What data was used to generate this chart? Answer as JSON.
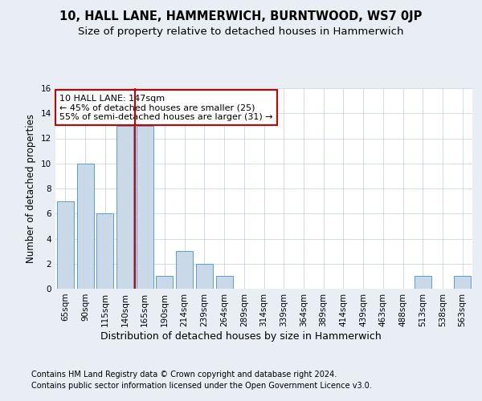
{
  "title1": "10, HALL LANE, HAMMERWICH, BURNTWOOD, WS7 0JP",
  "title2": "Size of property relative to detached houses in Hammerwich",
  "xlabel": "Distribution of detached houses by size in Hammerwich",
  "ylabel": "Number of detached properties",
  "categories": [
    "65sqm",
    "90sqm",
    "115sqm",
    "140sqm",
    "165sqm",
    "190sqm",
    "214sqm",
    "239sqm",
    "264sqm",
    "289sqm",
    "314sqm",
    "339sqm",
    "364sqm",
    "389sqm",
    "414sqm",
    "439sqm",
    "463sqm",
    "488sqm",
    "513sqm",
    "538sqm",
    "563sqm"
  ],
  "values": [
    7,
    10,
    6,
    13,
    13,
    1,
    3,
    2,
    1,
    0,
    0,
    0,
    0,
    0,
    0,
    0,
    0,
    0,
    1,
    0,
    1
  ],
  "bar_color": "#c9d9e8",
  "bar_edge_color": "#5b9bd5",
  "red_line_x": 3.5,
  "annotation_text": "10 HALL LANE: 147sqm\n← 45% of detached houses are smaller (25)\n55% of semi-detached houses are larger (31) →",
  "annotation_box_color": "white",
  "annotation_box_edge": "#cc0000",
  "ylim": [
    0,
    16
  ],
  "yticks": [
    0,
    2,
    4,
    6,
    8,
    10,
    12,
    14,
    16
  ],
  "footer1": "Contains HM Land Registry data © Crown copyright and database right 2024.",
  "footer2": "Contains public sector information licensed under the Open Government Licence v3.0.",
  "background_color": "#e8eef4",
  "plot_background": "white",
  "grid_color": "#c0cfe0",
  "title1_fontsize": 10.5,
  "title2_fontsize": 9.5,
  "xlabel_fontsize": 9,
  "ylabel_fontsize": 8.5,
  "tick_fontsize": 7.5,
  "annotation_fontsize": 8,
  "footer_fontsize": 7
}
